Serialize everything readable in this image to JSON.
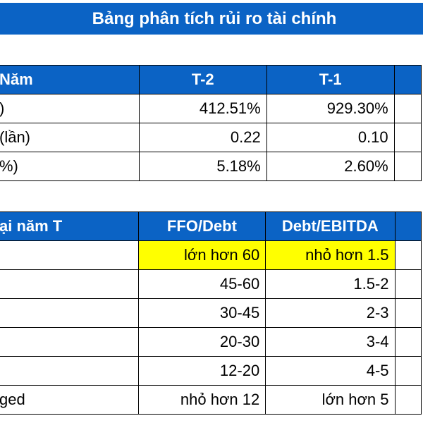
{
  "title": "Bảng phân tích rủi ro tài chính",
  "table1": {
    "header": [
      "Năm",
      "T-2",
      "T-1"
    ],
    "rows": [
      [
        ")",
        "412.51%",
        "929.30%"
      ],
      [
        " (lần)",
        "0.22",
        "0.10"
      ],
      [
        "%)",
        "5.18%",
        "2.60%"
      ]
    ]
  },
  "table2": {
    "header": [
      "ại năm T",
      "FFO/Debt",
      "Debt/EBITDA"
    ],
    "rows": [
      [
        "",
        "lớn hơn 60",
        "nhỏ hơn 1.5"
      ],
      [
        "",
        "45-60",
        "1.5-2"
      ],
      [
        "",
        "30-45",
        "2-3"
      ],
      [
        "",
        "20-30",
        "3-4"
      ],
      [
        "",
        "12-20",
        "4-5"
      ],
      [
        "ged",
        "nhỏ hơn 12",
        "lớn hơn 5"
      ]
    ],
    "highlight_color": "#ffff00",
    "header_color": "#0b63c5"
  }
}
